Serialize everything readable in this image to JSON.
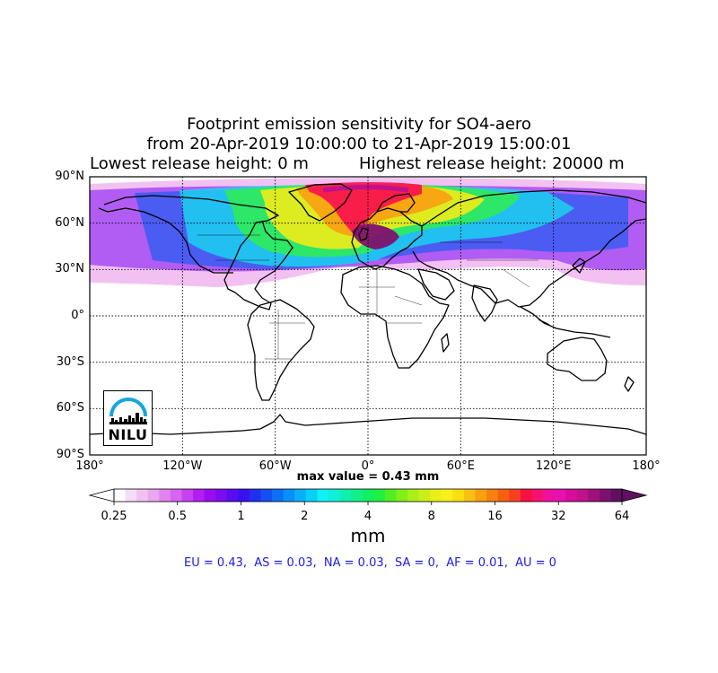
{
  "title": {
    "line1": "Footprint emission sensitivity for SO4-aero",
    "line2": "from 20-Apr-2019 10:00:00 to 21-Apr-2019 15:00:01",
    "lowest": "Lowest release height: 0 m",
    "highest": "Highest release height: 20000 m"
  },
  "axes": {
    "lat_labels": [
      "90°N",
      "60°N",
      "30°N",
      "0°",
      "30°S",
      "60°S",
      "90°S"
    ],
    "lon_labels": [
      "180°",
      "120°W",
      "60°W",
      "0°",
      "60°E",
      "120°E",
      "180°"
    ],
    "grid": true
  },
  "max_value": "max value = 0.43 mm",
  "colorbar": {
    "ticks": [
      "0.25",
      "0.5",
      "1",
      "2",
      "4",
      "8",
      "16",
      "32",
      "64"
    ],
    "unit": "mm",
    "colors": [
      "#ffffff",
      "#f7dcf7",
      "#f1c2f1",
      "#eaa6ef",
      "#e284ef",
      "#d765f0",
      "#c741f1",
      "#b21ef2",
      "#9a0cf0",
      "#7a0cf0",
      "#5a0cf0",
      "#3a10f0",
      "#2030f0",
      "#1450f2",
      "#0a70f5",
      "#0890f8",
      "#08b0fa",
      "#08d0fc",
      "#10f0f8",
      "#10f0d8",
      "#10f0b0",
      "#10f088",
      "#10f060",
      "#20f040",
      "#50f020",
      "#80f018",
      "#a8f018",
      "#c8f018",
      "#e8f018",
      "#f8f018",
      "#f8e010",
      "#f8c010",
      "#f8a010",
      "#f88010",
      "#f86010",
      "#f84020",
      "#f81040",
      "#f81070",
      "#f010a0",
      "#e810b0",
      "#d80c9c",
      "#c0108c",
      "#a0107c",
      "#801070",
      "#601060"
    ],
    "extend_left": "#ffffff",
    "extend_right": "#601060"
  },
  "summary": "EU = 0.43,  AS = 0.03,  NA = 0.03,  SA = 0,  AF = 0.01,  AU = 0",
  "logo": {
    "text": "NILU",
    "arc_color": "#16a6de"
  }
}
